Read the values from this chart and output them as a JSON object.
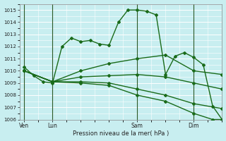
{
  "title": "Pression niveau de la mer( hPa )",
  "bg_color": "#c8eef0",
  "grid_color": "#ffffff",
  "line_color": "#1a6b1a",
  "ylim": [
    1006,
    1015.5
  ],
  "yticks": [
    1006,
    1007,
    1008,
    1009,
    1010,
    1011,
    1012,
    1013,
    1014,
    1015
  ],
  "xtick_labels": [
    "Ven",
    "Lun",
    "Sam",
    "Dim"
  ],
  "xtick_positions": [
    0,
    24,
    96,
    144
  ],
  "vline_positions": [
    0,
    24,
    96,
    144
  ],
  "xlim": [
    -4,
    168
  ],
  "lines": [
    {
      "x": [
        0,
        8,
        16,
        24,
        32,
        40,
        48,
        56,
        64,
        72,
        80,
        88,
        96,
        104,
        112,
        120,
        128,
        136,
        144,
        152,
        160,
        168
      ],
      "y": [
        1010.3,
        1009.6,
        1009.1,
        1009.0,
        1012.0,
        1012.7,
        1012.4,
        1012.5,
        1012.2,
        1012.1,
        1014.0,
        1015.0,
        1015.0,
        1014.9,
        1014.6,
        1009.7,
        1011.2,
        1011.5,
        1011.1,
        1010.5,
        1007.1,
        1006.0
      ],
      "marker": "D",
      "markersize": 2.0,
      "linewidth": 1.0
    },
    {
      "x": [
        0,
        24,
        48,
        72,
        96,
        120,
        144,
        168
      ],
      "y": [
        1010.0,
        1009.1,
        1010.0,
        1010.6,
        1011.0,
        1011.3,
        1010.0,
        1009.7
      ],
      "marker": "D",
      "markersize": 2.0,
      "linewidth": 1.0
    },
    {
      "x": [
        0,
        24,
        48,
        72,
        96,
        120,
        144,
        168
      ],
      "y": [
        1010.0,
        1009.1,
        1009.5,
        1009.6,
        1009.7,
        1009.5,
        1009.0,
        1008.5
      ],
      "marker": "D",
      "markersize": 2.0,
      "linewidth": 1.0
    },
    {
      "x": [
        0,
        24,
        48,
        72,
        96,
        120,
        144,
        168
      ],
      "y": [
        1010.0,
        1009.1,
        1009.1,
        1009.0,
        1008.5,
        1008.0,
        1007.3,
        1006.9
      ],
      "marker": "D",
      "markersize": 2.0,
      "linewidth": 1.0
    },
    {
      "x": [
        0,
        24,
        48,
        72,
        96,
        120,
        144,
        160,
        168
      ],
      "y": [
        1010.0,
        1009.1,
        1009.0,
        1008.8,
        1008.0,
        1007.5,
        1006.5,
        1006.0,
        1006.0
      ],
      "marker": "D",
      "markersize": 2.0,
      "linewidth": 1.0
    }
  ]
}
